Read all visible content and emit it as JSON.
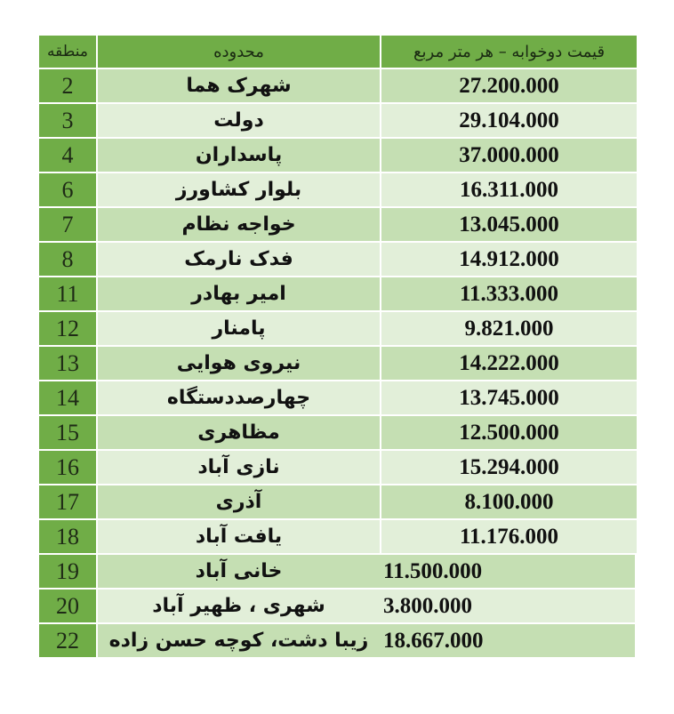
{
  "header": {
    "district": "منطقه",
    "area": "محدوده",
    "price": "قیمت دوخوابه – هر متر مربع"
  },
  "rows": [
    {
      "district": "2",
      "area": "شهرک هما",
      "price": "27.200.000"
    },
    {
      "district": "3",
      "area": "دولت",
      "price": "29.104.000"
    },
    {
      "district": "4",
      "area": "پاسداران",
      "price": "37.000.000"
    },
    {
      "district": "6",
      "area": "بلوار کشاورز",
      "price": "16.311.000"
    },
    {
      "district": "7",
      "area": "خواجه نظام",
      "price": "13.045.000"
    },
    {
      "district": "8",
      "area": "فدک نارمک",
      "price": "14.912.000"
    },
    {
      "district": "11",
      "area": "امیر بهادر",
      "price": "11.333.000"
    },
    {
      "district": "12",
      "area": "پامنار",
      "price": "9.821.000"
    },
    {
      "district": "13",
      "area": "نیروی هوایی",
      "price": "14.222.000"
    },
    {
      "district": "14",
      "area": "چهارصددستگاه",
      "price": "13.745.000"
    },
    {
      "district": "15",
      "area": "مظاهری",
      "price": "12.500.000"
    },
    {
      "district": "16",
      "area": "نازی آباد",
      "price": "15.294.000"
    },
    {
      "district": "17",
      "area": "آذری",
      "price": "8.100.000"
    },
    {
      "district": "18",
      "area": "یافت آباد",
      "price": "11.176.000"
    },
    {
      "district": "19",
      "area": "خانی آباد",
      "price": "11.500.000"
    },
    {
      "district": "20",
      "area": "شهری ، ظهیر آباد",
      "price": "3.800.000"
    },
    {
      "district": "22",
      "area": "زیبا دشت، کوچه حسن زاده",
      "price": "18.667.000"
    }
  ],
  "colors": {
    "header": "#70ad47",
    "row_dark": "#c5dfb3",
    "row_light": "#e2efd9"
  }
}
